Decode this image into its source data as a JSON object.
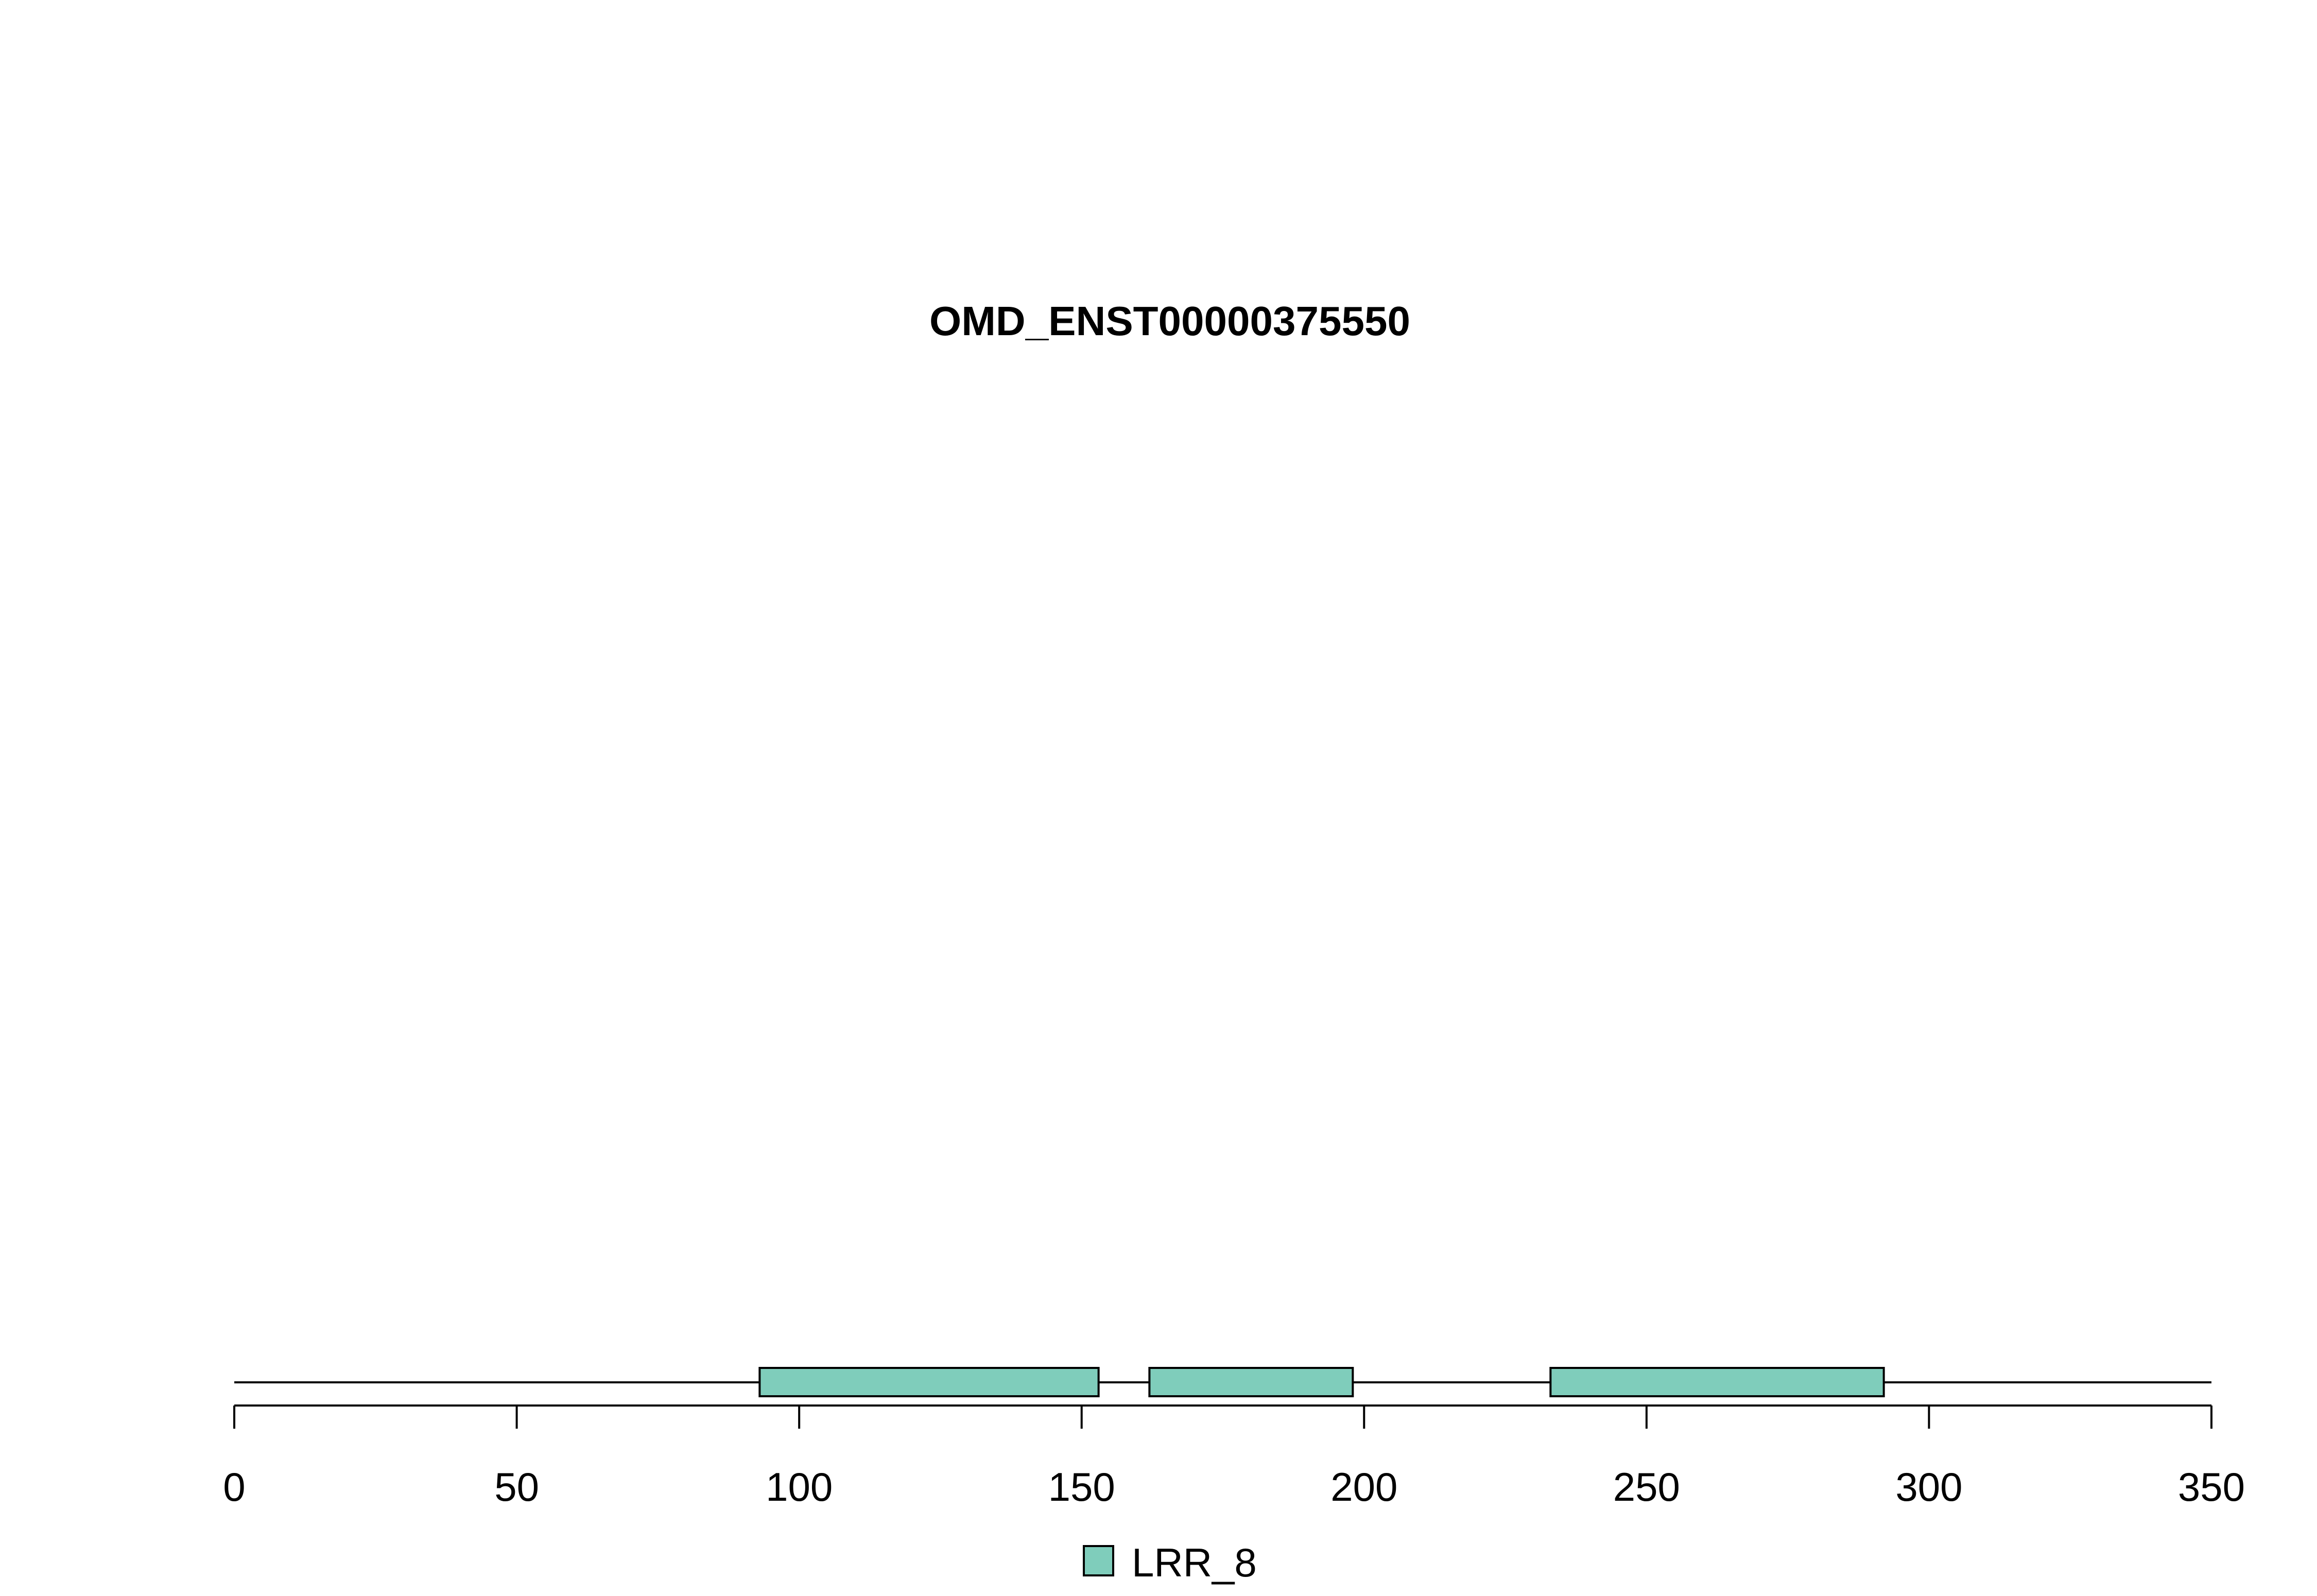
{
  "chart_data": {
    "type": "bar",
    "title": "OMD_ENST00000375550",
    "xlim": [
      0,
      350
    ],
    "xticks": [
      0,
      50,
      100,
      150,
      200,
      250,
      300,
      350
    ],
    "xtick_labels": [
      "0",
      "50",
      "100",
      "150",
      "200",
      "250",
      "300",
      "350"
    ],
    "protein_length": 350,
    "domains": [
      {
        "name": "LRR_8",
        "start": 93,
        "end": 153
      },
      {
        "name": "LRR_8",
        "start": 162,
        "end": 198
      },
      {
        "name": "LRR_8",
        "start": 233,
        "end": 292
      }
    ],
    "legend": [
      {
        "label": "LRR_8",
        "color": "#7fcdbb"
      }
    ],
    "legend_placement": "bottom-center",
    "grid": false
  }
}
